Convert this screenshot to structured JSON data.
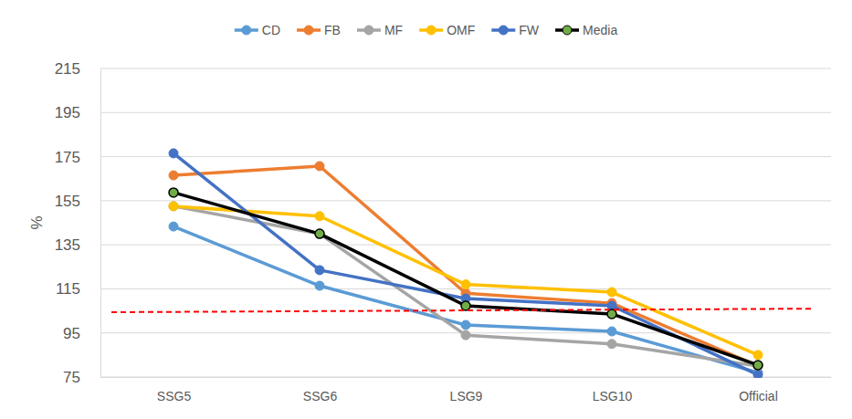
{
  "chart_data": {
    "type": "line",
    "categories": [
      "SSG5",
      "SSG6",
      "LSG9",
      "LSG10",
      "Official"
    ],
    "y_label": "%",
    "ylim": [
      75,
      215
    ],
    "yticks": [
      75,
      95,
      115,
      135,
      155,
      175,
      195,
      215
    ],
    "grid": true,
    "legend": "top",
    "series": [
      {
        "name": "CD",
        "color": "#5b9bd5",
        "marker": "circle",
        "values": [
          143.3,
          116.4,
          98.6,
          95.7,
          77
        ]
      },
      {
        "name": "FB",
        "color": "#ed7d31",
        "marker": "circle",
        "values": [
          166.5,
          170.7,
          113,
          108.5,
          80
        ]
      },
      {
        "name": "MF",
        "color": "#a5a5a5",
        "marker": "circle",
        "values": [
          152.5,
          140,
          94,
          90,
          80
        ]
      },
      {
        "name": "OMF",
        "color": "#ffc000",
        "marker": "circle",
        "values": [
          152.5,
          148,
          117,
          113.5,
          85
        ]
      },
      {
        "name": "FW",
        "color": "#4472c4",
        "marker": "circle",
        "values": [
          176.5,
          123.5,
          110.6,
          107.3,
          76
        ]
      },
      {
        "name": "Media",
        "color": "#000000",
        "marker": "circle",
        "colors": [
          "#70ad47",
          "#70ad47",
          "#70ad47",
          "#70ad47",
          "#70ad47"
        ],
        "values": [
          158.7,
          140,
          107.3,
          103.6,
          80.4
        ]
      }
    ],
    "reference_line": {
      "y": [
        104.4,
        106
      ],
      "color": "#ff0000",
      "line_style": "dashed"
    }
  }
}
